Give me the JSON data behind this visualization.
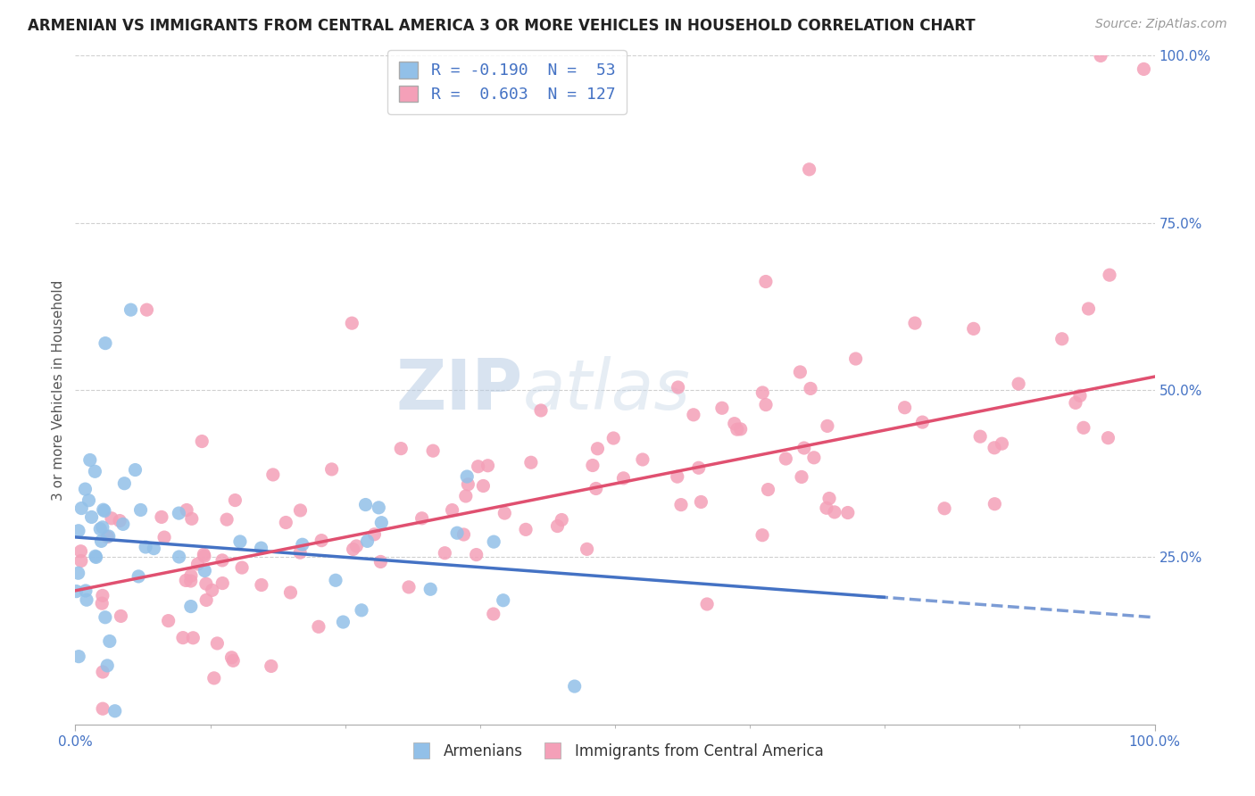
{
  "title": "ARMENIAN VS IMMIGRANTS FROM CENTRAL AMERICA 3 OR MORE VEHICLES IN HOUSEHOLD CORRELATION CHART",
  "source": "Source: ZipAtlas.com",
  "ylabel": "3 or more Vehicles in Household",
  "xmin": 0.0,
  "xmax": 100.0,
  "ymin": 0.0,
  "ymax": 100.0,
  "right_yticks": [
    25,
    50,
    75,
    100
  ],
  "armenians_legend": "Armenians",
  "immigrants_legend": "Immigrants from Central America",
  "blue_R": -0.19,
  "blue_N": 53,
  "pink_R": 0.603,
  "pink_N": 127,
  "blue_color": "#92c0e8",
  "pink_color": "#f4a0b8",
  "blue_line_color": "#4472c4",
  "pink_line_color": "#e05070",
  "watermark_zip": "ZIP",
  "watermark_atlas": "atlas",
  "background_color": "#ffffff",
  "scatter_alpha": 0.85,
  "scatter_size": 120,
  "blue_intercept": 28.0,
  "blue_slope": -0.12,
  "pink_intercept": 20.0,
  "pink_slope": 0.32,
  "blue_solid_end": 75.0,
  "grid_color": "#d0d0d0",
  "title_color": "#222222",
  "source_color": "#999999",
  "tick_label_color": "#4472c4",
  "legend_text_color": "#4472c4"
}
